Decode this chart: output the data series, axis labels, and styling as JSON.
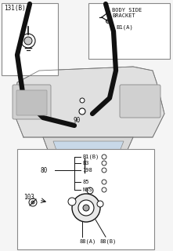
{
  "bg_color": "#f0f0f0",
  "line_color": "#555555",
  "dark_line": "#111111",
  "box_color": "#e8e8e8",
  "text_color": "#333333",
  "title": "",
  "inset1_label": "131(B)",
  "inset2_label1": "BODY SIDE",
  "inset2_label2": "BRACKET",
  "inset2_sublabel": "B1(A)",
  "label_90": "90",
  "label_80": "80",
  "label_103": "103",
  "bottom_labels": [
    "B1(B)",
    "B3",
    "198",
    "85",
    "NSS"
  ],
  "bottom_labels2": [
    "88(A)",
    "88(B)"
  ]
}
